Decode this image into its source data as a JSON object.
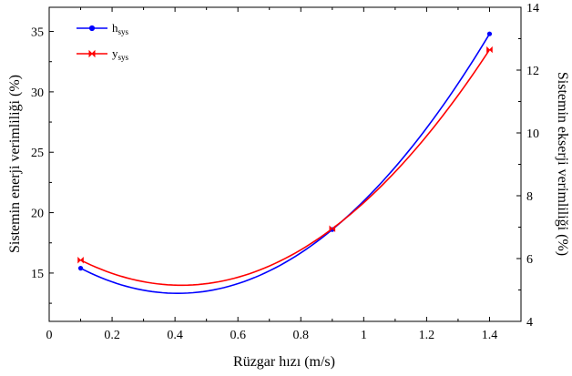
{
  "chart_data": {
    "type": "line",
    "title": "",
    "xlabel": "Rüzgar hızı (m/s)",
    "ylabel": "Sistemin enerji verimliliği (%)",
    "y2label": "Sistemin ekserji verimliliği (%)",
    "xlim": [
      0,
      1.5
    ],
    "ylim": [
      11,
      37
    ],
    "y2lim": [
      4,
      14
    ],
    "xticks": [
      "0",
      "0.2",
      "0.4",
      "0.6",
      "0.8",
      "1",
      "1.2",
      "1.4"
    ],
    "yticks": [
      "15",
      "20",
      "25",
      "30",
      "35"
    ],
    "y2ticks": [
      "4",
      "6",
      "8",
      "10",
      "12",
      "14"
    ],
    "grid": false,
    "legend_position": "top-left",
    "series": [
      {
        "name_main": "h",
        "name_sub": "sys",
        "axis": "left",
        "color": "#0000ff",
        "marker": "circle",
        "x": [
          0.1,
          0.9,
          1.4
        ],
        "values": [
          15.4,
          18.6,
          34.8
        ]
      },
      {
        "name_main": "y",
        "name_sub": "sys",
        "axis": "right",
        "color": "#ff0000",
        "marker": "bowtie",
        "x": [
          0.1,
          0.9,
          1.4
        ],
        "values": [
          5.95,
          6.95,
          12.65
        ]
      }
    ]
  }
}
